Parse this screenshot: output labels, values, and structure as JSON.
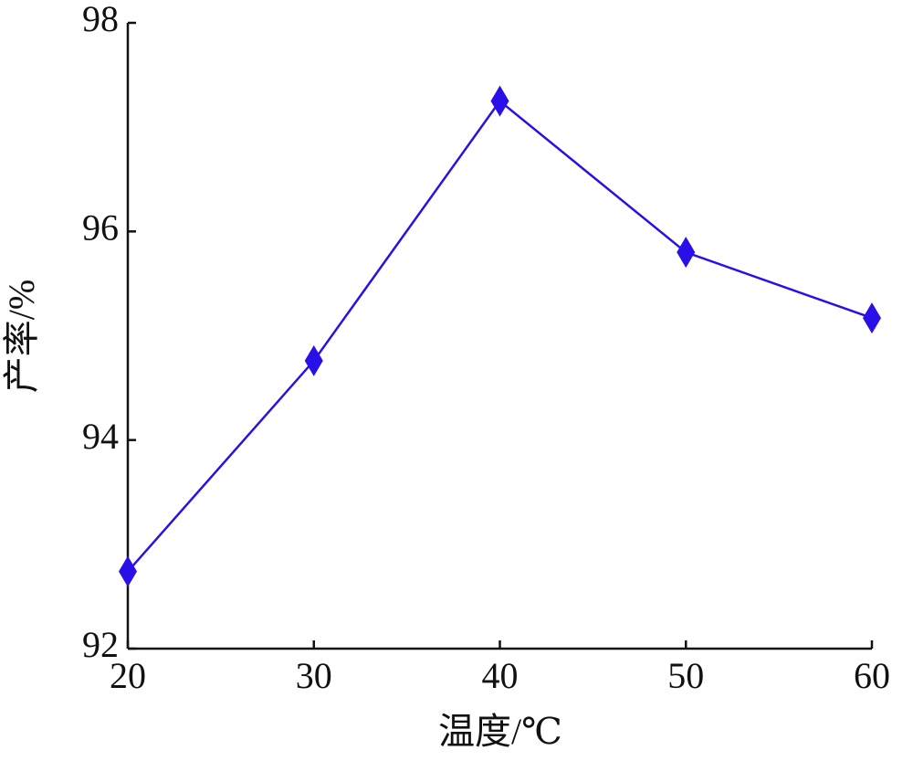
{
  "chart_data": {
    "type": "line",
    "xlabel": "温度/℃",
    "ylabel": "产率/%",
    "x": [
      20,
      30,
      40,
      50,
      60
    ],
    "series": [
      {
        "color": "#2a10e8",
        "values": [
          92.74,
          94.76,
          97.25,
          95.8,
          95.17
        ]
      }
    ],
    "xlim": [
      20,
      60
    ],
    "xticks": [
      20,
      30,
      40,
      50,
      60
    ],
    "ylim": [
      92,
      98
    ],
    "yticks": [
      92,
      94,
      96,
      98
    ],
    "grid": false
  }
}
